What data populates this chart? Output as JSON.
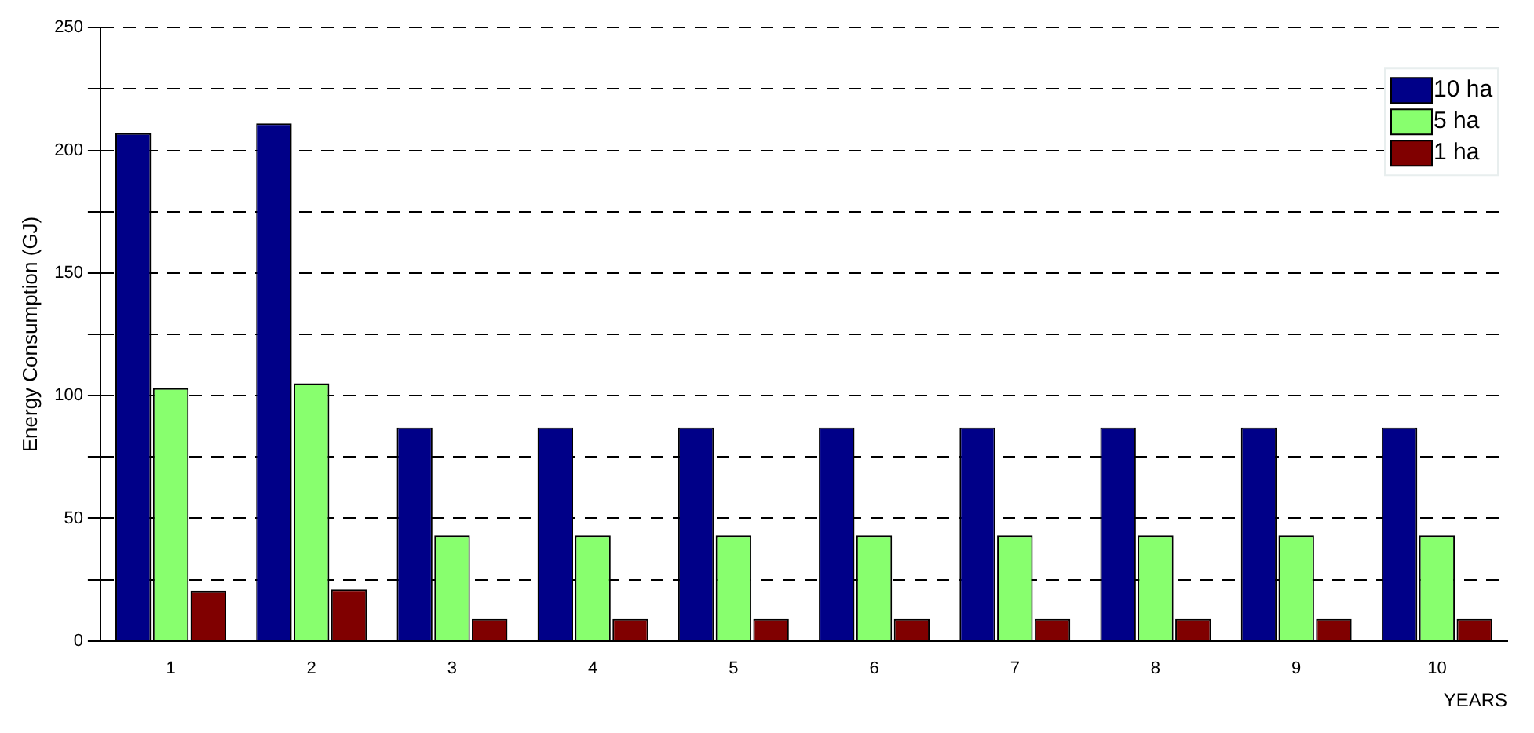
{
  "chart_data": {
    "type": "bar",
    "xlabel": "YEARS",
    "ylabel": "Energy Consumption (GJ)",
    "categories": [
      "1",
      "2",
      "3",
      "4",
      "5",
      "6",
      "7",
      "8",
      "9",
      "10"
    ],
    "series": [
      {
        "name": "10 ha",
        "color": "#000088",
        "values": [
          207,
          211,
          87,
          87,
          87,
          87,
          87,
          87,
          87,
          87
        ]
      },
      {
        "name": "5 ha",
        "color": "#88ff6e",
        "values": [
          103,
          105,
          43,
          43,
          43,
          43,
          43,
          43,
          43,
          43
        ]
      },
      {
        "name": "1 ha",
        "color": "#800000",
        "values": [
          20.5,
          21,
          9,
          9,
          9,
          9,
          9,
          9,
          9,
          9
        ]
      }
    ],
    "ylim": [
      0,
      250
    ],
    "yticks": [
      0,
      {
        "value": 25,
        "label": null
      },
      50,
      {
        "value": 75,
        "label": null
      },
      100,
      {
        "value": 125,
        "label": null
      },
      150,
      {
        "value": 175,
        "label": null
      },
      200,
      {
        "value": 225,
        "label": null
      },
      250
    ],
    "grid": "y",
    "legend": "top right"
  }
}
